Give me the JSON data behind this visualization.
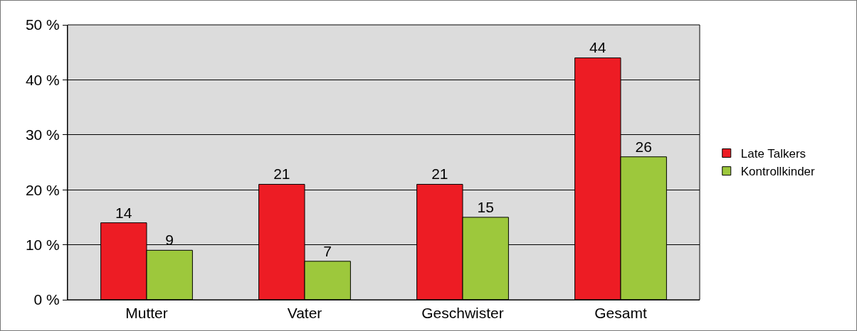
{
  "chart_data": {
    "type": "bar",
    "categories": [
      "Mutter",
      "Vater",
      "Geschwister",
      "Gesamt"
    ],
    "series": [
      {
        "name": "Late Talkers",
        "color": "#ed1c24",
        "values": [
          14,
          21,
          21,
          44
        ]
      },
      {
        "name": "Kontrollkinder",
        "color": "#9dc83c",
        "values": [
          9,
          7,
          15,
          26
        ]
      }
    ],
    "ylim": [
      0,
      50
    ],
    "yticks": [
      {
        "value": 0,
        "label": "0 %"
      },
      {
        "value": 10,
        "label": "10 %"
      },
      {
        "value": 20,
        "label": "20 %"
      },
      {
        "value": 30,
        "label": "30 %"
      },
      {
        "value": 40,
        "label": "40 %"
      },
      {
        "value": 50,
        "label": "50 %"
      }
    ],
    "grid": "y",
    "legend": "right",
    "data_labels": true
  }
}
